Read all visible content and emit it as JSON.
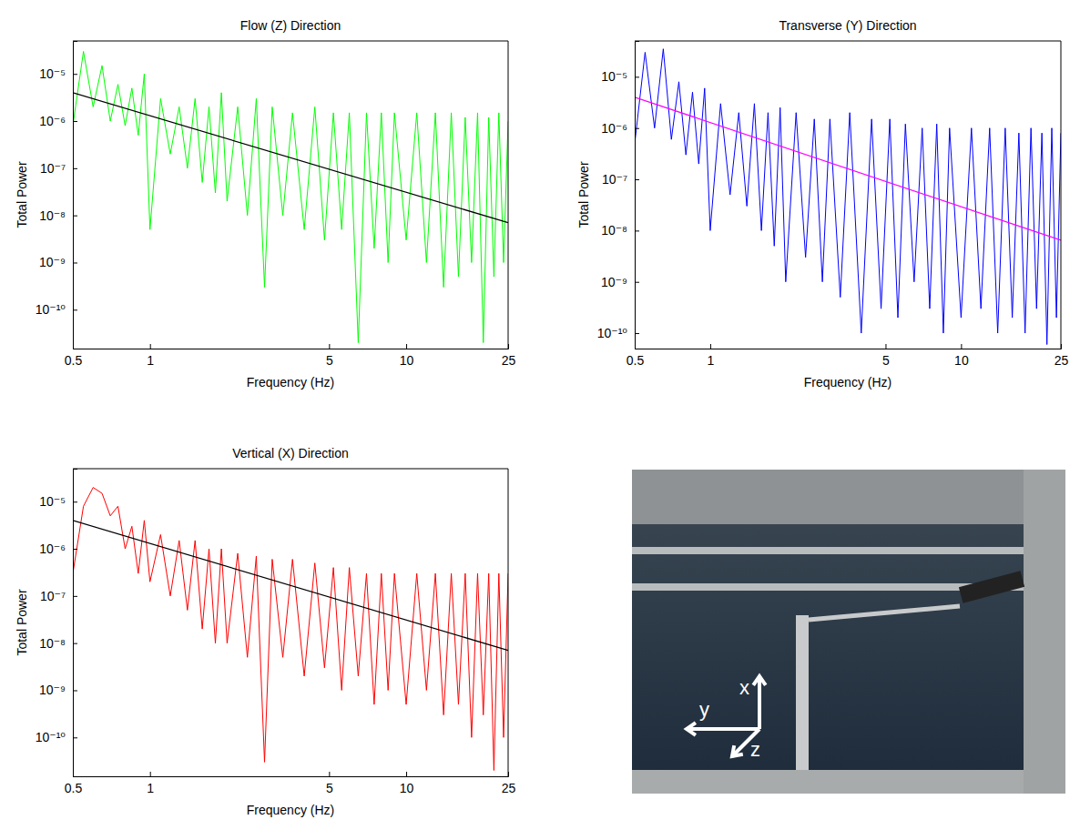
{
  "chart_data": [
    {
      "type": "line",
      "title": "Flow (Z) Direction",
      "x_label": "Frequency (Hz)",
      "y_label": "Total Power",
      "log": true,
      "xlim": [
        0.5,
        25
      ],
      "xticks": [
        0.5,
        1,
        5,
        10,
        25
      ],
      "ylim": [
        1.5e-11,
        5e-05
      ],
      "yticks": [
        {
          "value": 1e-10,
          "label": "10⁻¹⁰"
        },
        {
          "value": 1e-09,
          "label": "10⁻⁹"
        },
        {
          "value": 1e-08,
          "label": "10⁻⁸"
        },
        {
          "value": 1e-07,
          "label": "10⁻⁷"
        },
        {
          "value": 1e-06,
          "label": "10⁻⁶"
        },
        {
          "value": 1e-05,
          "label": "10⁻⁵"
        }
      ],
      "series": [
        {
          "color": "#00ff00",
          "x": [
            0.5,
            0.55,
            0.6,
            0.65,
            0.7,
            0.75,
            0.8,
            0.85,
            0.9,
            0.95,
            1.0,
            1.1,
            1.2,
            1.3,
            1.4,
            1.5,
            1.6,
            1.7,
            1.8,
            1.9,
            2.0,
            2.2,
            2.4,
            2.6,
            2.8,
            3.0,
            3.3,
            3.6,
            4.0,
            4.4,
            4.8,
            5.2,
            5.6,
            6.0,
            6.5,
            7.0,
            7.5,
            8,
            8.5,
            9,
            10,
            11,
            12,
            13,
            14,
            15,
            16,
            17,
            18,
            19,
            20,
            21,
            22,
            23,
            24,
            25
          ],
          "values": [
            8e-07,
            3e-05,
            2e-06,
            1.5e-05,
            1e-06,
            6e-06,
            8e-07,
            5e-06,
            5e-07,
            1e-05,
            5e-09,
            3e-06,
            2e-07,
            2e-06,
            1e-07,
            3e-06,
            5e-08,
            2e-06,
            3e-08,
            4e-06,
            2e-08,
            2e-06,
            1e-08,
            3e-06,
            3e-10,
            2e-06,
            1e-08,
            1.5e-06,
            5e-09,
            2e-06,
            3e-09,
            1.5e-06,
            5e-09,
            1.5e-06,
            2e-11,
            1.5e-06,
            2e-09,
            1.5e-06,
            1e-09,
            1.5e-06,
            3e-09,
            1.5e-06,
            1e-09,
            1.5e-06,
            3e-10,
            1.5e-06,
            5e-10,
            1.2e-06,
            1e-09,
            1.5e-06,
            2e-11,
            1.2e-06,
            5e-10,
            1.5e-06,
            1e-09,
            1e-06
          ]
        },
        {
          "color": "#000000",
          "x": [
            0.5,
            25
          ],
          "values": [
            4e-06,
            7e-09
          ]
        }
      ]
    },
    {
      "type": "line",
      "title": "Transverse (Y) Direction",
      "x_label": "Frequency (Hz)",
      "y_label": "Total Power",
      "log": true,
      "xlim": [
        0.5,
        25
      ],
      "xticks": [
        0.5,
        1,
        5,
        10,
        25
      ],
      "ylim": [
        5e-11,
        5e-05
      ],
      "yticks": [
        {
          "value": 1e-10,
          "label": "10⁻¹⁰"
        },
        {
          "value": 1e-09,
          "label": "10⁻⁹"
        },
        {
          "value": 1e-08,
          "label": "10⁻⁸"
        },
        {
          "value": 1e-07,
          "label": "10⁻⁷"
        },
        {
          "value": 1e-06,
          "label": "10⁻⁶"
        },
        {
          "value": 1e-05,
          "label": "10⁻⁵"
        }
      ],
      "series": [
        {
          "color": "#0000ff",
          "x": [
            0.5,
            0.55,
            0.6,
            0.65,
            0.7,
            0.75,
            0.8,
            0.85,
            0.9,
            0.95,
            1.0,
            1.1,
            1.2,
            1.3,
            1.4,
            1.5,
            1.6,
            1.7,
            1.8,
            1.9,
            2.0,
            2.2,
            2.4,
            2.6,
            2.8,
            3.0,
            3.3,
            3.6,
            4.0,
            4.4,
            4.8,
            5.2,
            5.6,
            6.0,
            6.5,
            7.0,
            7.5,
            8,
            8.5,
            9,
            10,
            11,
            12,
            13,
            14,
            15,
            16,
            17,
            18,
            19,
            20,
            21,
            22,
            23,
            24,
            25
          ],
          "values": [
            5e-07,
            3e-05,
            1e-06,
            3.5e-05,
            6e-07,
            8e-06,
            3e-07,
            5e-06,
            2e-07,
            6e-06,
            1e-08,
            3e-06,
            5e-08,
            2e-06,
            3e-08,
            3e-06,
            1e-08,
            2e-06,
            5e-09,
            2.5e-06,
            1e-09,
            2e-06,
            3e-09,
            1.5e-06,
            1e-09,
            1.5e-06,
            5e-10,
            2e-06,
            1e-10,
            1.5e-06,
            3e-10,
            1.5e-06,
            2e-10,
            1.2e-06,
            1e-09,
            1e-06,
            3e-10,
            1.2e-06,
            1e-10,
            1e-06,
            2e-10,
            1e-06,
            3e-10,
            1e-06,
            1e-10,
            1e-06,
            2e-10,
            8e-07,
            1e-10,
            1e-06,
            3e-10,
            8e-07,
            6e-11,
            1e-06,
            2e-10,
            8e-07
          ]
        },
        {
          "color": "#ff00ff",
          "x": [
            0.5,
            25
          ],
          "values": [
            4e-06,
            6.5e-09
          ]
        }
      ]
    },
    {
      "type": "line",
      "title": "Vertical (X) Direction",
      "x_label": "Frequency (Hz)",
      "y_label": "Total Power",
      "log": true,
      "xlim": [
        0.5,
        25
      ],
      "xticks": [
        0.5,
        1,
        5,
        10,
        25
      ],
      "ylim": [
        1.5e-11,
        5e-05
      ],
      "yticks": [
        {
          "value": 1e-10,
          "label": "10⁻¹⁰"
        },
        {
          "value": 1e-09,
          "label": "10⁻⁹"
        },
        {
          "value": 1e-08,
          "label": "10⁻⁸"
        },
        {
          "value": 1e-07,
          "label": "10⁻⁷"
        },
        {
          "value": 1e-06,
          "label": "10⁻⁶"
        },
        {
          "value": 1e-05,
          "label": "10⁻⁵"
        }
      ],
      "series": [
        {
          "color": "#ff0000",
          "x": [
            0.5,
            0.55,
            0.6,
            0.65,
            0.7,
            0.75,
            0.8,
            0.85,
            0.9,
            0.95,
            1.0,
            1.1,
            1.2,
            1.3,
            1.4,
            1.5,
            1.6,
            1.7,
            1.8,
            1.9,
            2.0,
            2.2,
            2.4,
            2.6,
            2.8,
            3.0,
            3.3,
            3.6,
            4.0,
            4.4,
            4.8,
            5.2,
            5.6,
            6.0,
            6.5,
            7.0,
            7.5,
            8,
            8.5,
            9,
            10,
            11,
            12,
            13,
            14,
            15,
            16,
            17,
            18,
            19,
            20,
            21,
            22,
            23,
            24,
            25
          ],
          "values": [
            3e-07,
            8e-06,
            2e-05,
            1.5e-05,
            5e-06,
            8e-06,
            1e-06,
            3e-06,
            3e-07,
            4e-06,
            2e-07,
            2e-06,
            1e-07,
            1.5e-06,
            5e-08,
            1.5e-06,
            2e-08,
            1e-06,
            1e-08,
            1e-06,
            1e-08,
            8e-07,
            5e-09,
            7e-07,
            3e-11,
            6e-07,
            5e-09,
            6e-07,
            2e-09,
            5e-07,
            3e-09,
            4e-07,
            1e-09,
            4e-07,
            2e-09,
            3e-07,
            5e-10,
            3e-07,
            1e-09,
            3e-07,
            5e-10,
            3e-07,
            1e-09,
            3e-07,
            3e-10,
            3e-07,
            5e-10,
            3e-07,
            1e-10,
            3e-07,
            3e-10,
            3e-07,
            2e-11,
            3e-07,
            1e-10,
            3e-07
          ]
        },
        {
          "color": "#000000",
          "x": [
            0.5,
            25
          ],
          "values": [
            4e-06,
            7e-09
          ]
        }
      ]
    }
  ],
  "photo": {
    "labels": [
      "x",
      "y",
      "z"
    ]
  }
}
